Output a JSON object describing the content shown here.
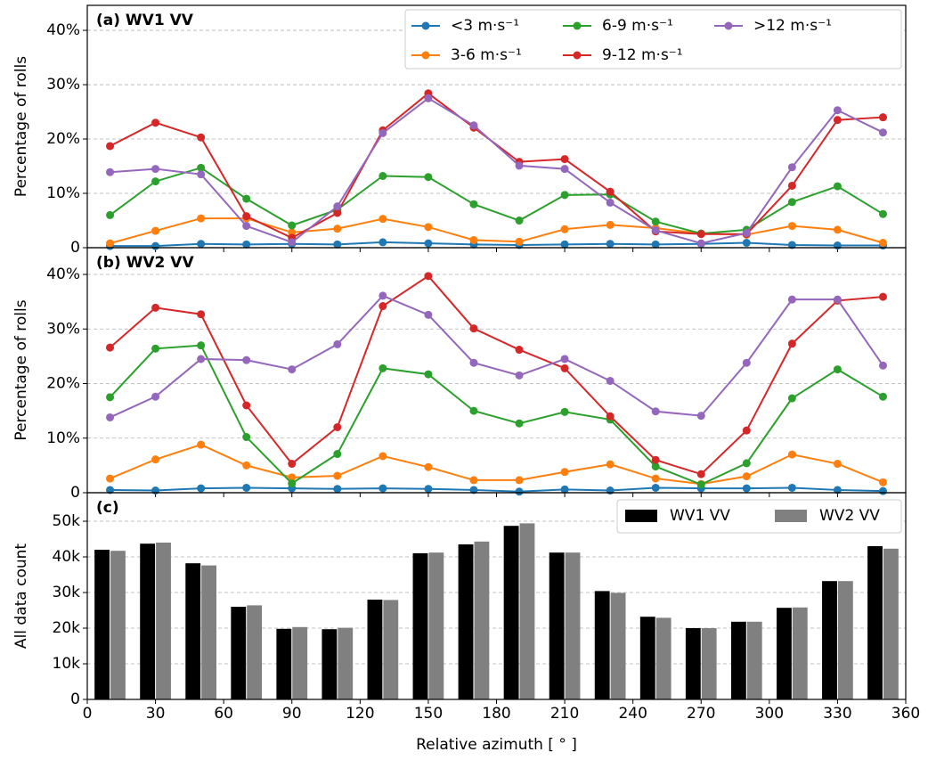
{
  "chart_data": [
    {
      "type": "line",
      "title": "(a) WV1 VV",
      "ylabel": "Percentage of rolls",
      "x": [
        10,
        30,
        50,
        70,
        90,
        110,
        130,
        150,
        170,
        190,
        210,
        230,
        250,
        270,
        290,
        310,
        330,
        350
      ],
      "xlim": [
        0,
        360
      ],
      "ylim": [
        0,
        44.6
      ],
      "yticks": [
        0,
        {
          "value": 10,
          "label": "10%"
        },
        {
          "value": 20,
          "label": "20%"
        },
        {
          "value": 30,
          "label": "30%"
        },
        {
          "value": 40,
          "label": "40%"
        }
      ],
      "grid": true,
      "legend": "upper right",
      "series": [
        {
          "name": "<3 m·s⁻¹",
          "color": "#1f77b4",
          "values": [
            0.3,
            0.3,
            0.7,
            0.6,
            0.7,
            0.6,
            1.0,
            0.8,
            0.6,
            0.5,
            0.6,
            0.7,
            0.6,
            0.7,
            0.9,
            0.5,
            0.4,
            0.4
          ]
        },
        {
          "name": "3-6 m·s⁻¹",
          "color": "#ff7f0e",
          "values": [
            0.8,
            3.1,
            5.4,
            5.4,
            2.8,
            3.5,
            5.3,
            3.8,
            1.4,
            1.1,
            3.4,
            4.2,
            3.6,
            2.6,
            2.4,
            4.0,
            3.3,
            0.9
          ]
        },
        {
          "name": "6-9 m·s⁻¹",
          "color": "#2ca02c",
          "values": [
            6.0,
            12.2,
            14.7,
            9.0,
            4.1,
            7.0,
            13.2,
            13.0,
            8.0,
            5.0,
            9.7,
            9.8,
            4.8,
            2.6,
            3.3,
            8.4,
            11.3,
            6.2
          ]
        },
        {
          "name": "9-12 m·s⁻¹",
          "color": "#d62728",
          "values": [
            18.7,
            23.0,
            20.3,
            5.8,
            1.8,
            6.4,
            21.6,
            28.4,
            22.1,
            15.8,
            16.3,
            10.3,
            3.0,
            2.5,
            2.5,
            11.4,
            23.5,
            24.0
          ]
        },
        {
          "name": ">12 m·s⁻¹",
          "color": "#9467bd",
          "values": [
            13.9,
            14.5,
            13.5,
            4.0,
            1.0,
            7.6,
            21.1,
            27.5,
            22.5,
            15.1,
            14.5,
            8.3,
            3.2,
            0.8,
            2.7,
            14.8,
            25.3,
            21.2
          ]
        }
      ]
    },
    {
      "type": "line",
      "title": "(b) WV2 VV",
      "ylabel": "Percentage of rolls",
      "x": [
        10,
        30,
        50,
        70,
        90,
        110,
        130,
        150,
        170,
        190,
        210,
        230,
        250,
        270,
        290,
        310,
        330,
        350
      ],
      "xlim": [
        0,
        360
      ],
      "ylim": [
        0,
        44.9
      ],
      "yticks": [
        0,
        {
          "value": 10,
          "label": "10%"
        },
        {
          "value": 20,
          "label": "20%"
        },
        {
          "value": 30,
          "label": "30%"
        },
        {
          "value": 40,
          "label": "40%"
        }
      ],
      "grid": true,
      "series": [
        {
          "name": "<3 m·s⁻¹",
          "color": "#1f77b4",
          "values": [
            0.5,
            0.4,
            0.8,
            0.9,
            0.8,
            0.7,
            0.8,
            0.7,
            0.5,
            0.2,
            0.6,
            0.4,
            0.9,
            0.8,
            0.8,
            0.9,
            0.5,
            0.3
          ]
        },
        {
          "name": "3-6 m·s⁻¹",
          "color": "#ff7f0e",
          "values": [
            2.6,
            6.1,
            8.8,
            5.0,
            2.8,
            3.1,
            6.7,
            4.7,
            2.3,
            2.3,
            3.8,
            5.2,
            2.6,
            1.6,
            3.0,
            7.0,
            5.3,
            1.9
          ]
        },
        {
          "name": "6-9 m·s⁻¹",
          "color": "#2ca02c",
          "values": [
            17.5,
            26.4,
            27.0,
            10.2,
            1.7,
            7.1,
            22.8,
            21.7,
            15.0,
            12.7,
            14.8,
            13.4,
            4.8,
            1.5,
            5.4,
            17.3,
            22.6,
            17.6
          ]
        },
        {
          "name": "9-12 m·s⁻¹",
          "color": "#d62728",
          "values": [
            26.6,
            33.9,
            32.7,
            16.0,
            5.3,
            12.0,
            34.2,
            39.7,
            30.1,
            26.2,
            22.8,
            14.0,
            6.0,
            3.4,
            11.4,
            27.3,
            35.2,
            35.9
          ]
        },
        {
          "name": ">12 m·s⁻¹",
          "color": "#9467bd",
          "values": [
            13.8,
            17.6,
            24.5,
            24.3,
            22.6,
            27.2,
            36.1,
            32.6,
            23.8,
            21.5,
            24.5,
            20.5,
            14.9,
            14.1,
            23.8,
            35.4,
            35.4,
            23.3
          ]
        }
      ]
    },
    {
      "type": "bar",
      "title": "(c)",
      "ylabel": "All data count",
      "xlabel": "Relative azimuth [ ° ]",
      "x": [
        10,
        30,
        50,
        70,
        90,
        110,
        130,
        150,
        170,
        190,
        210,
        230,
        250,
        270,
        290,
        310,
        330,
        350
      ],
      "xlim": [
        0,
        360
      ],
      "ylim": [
        0,
        58000
      ],
      "xticks": [
        0,
        30,
        60,
        90,
        120,
        150,
        180,
        210,
        240,
        270,
        300,
        330,
        360
      ],
      "yticks": [
        0,
        {
          "value": 10000,
          "label": "10k"
        },
        {
          "value": 20000,
          "label": "20k"
        },
        {
          "value": 30000,
          "label": "30k"
        },
        {
          "value": 40000,
          "label": "40k"
        },
        {
          "value": 50000,
          "label": "50k"
        }
      ],
      "grid": true,
      "legend": "upper right",
      "series": [
        {
          "name": "WV1 VV",
          "color": "#000000",
          "values": [
            42000,
            43700,
            38200,
            26000,
            19800,
            19700,
            28000,
            41000,
            43500,
            48700,
            41200,
            30400,
            23200,
            20000,
            21800,
            25700,
            33200,
            43000
          ]
        },
        {
          "name": "WV2 VV",
          "color": "#808080",
          "values": [
            41700,
            44000,
            37600,
            26400,
            20300,
            20100,
            27900,
            41200,
            44300,
            49400,
            41200,
            29900,
            22900,
            20000,
            21800,
            25800,
            33200,
            42300
          ]
        }
      ]
    }
  ]
}
